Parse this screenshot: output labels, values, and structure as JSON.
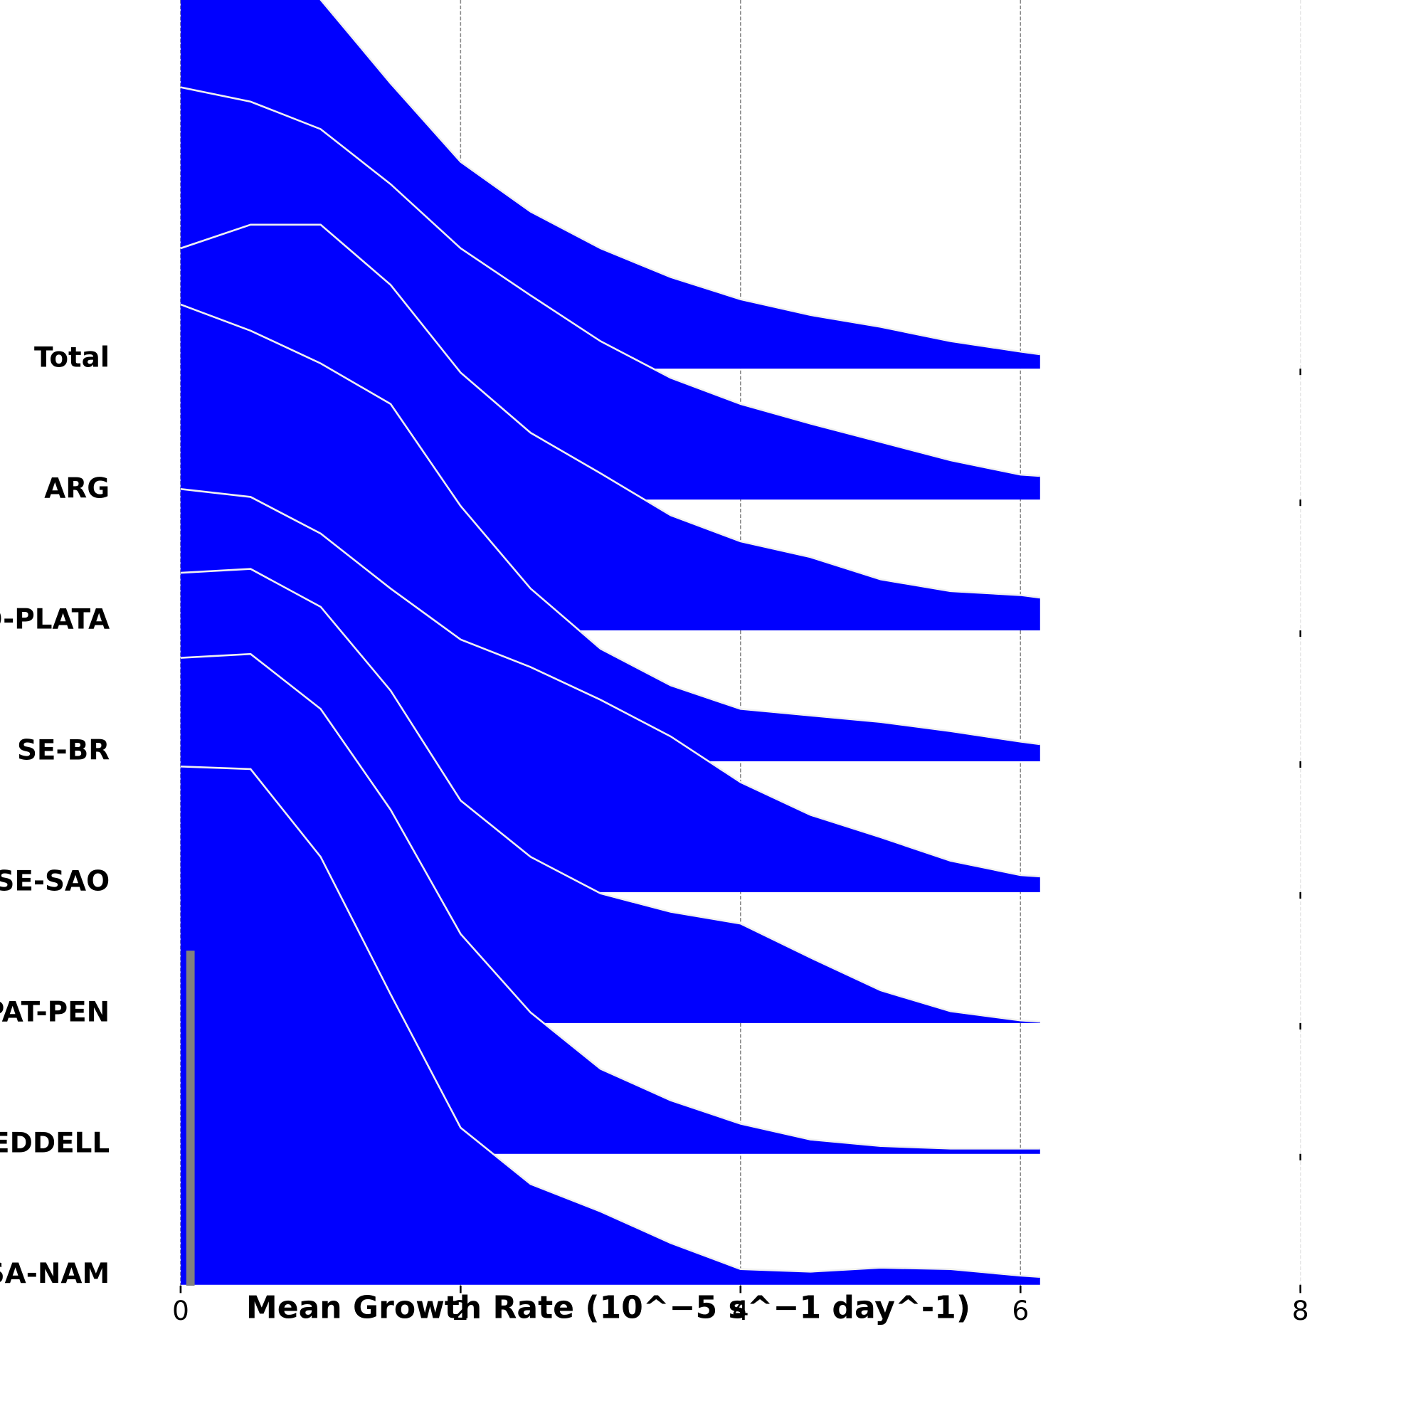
{
  "chart_data": {
    "type": "ridgeline",
    "xlabel": "Mean Growth Rate (10^−5 s^−1 day^-1)",
    "xlim": [
      0,
      8
    ],
    "xticks": [
      0,
      2,
      4,
      6,
      8
    ],
    "grid": true,
    "x": [
      0,
      0.5,
      1,
      1.5,
      2,
      2.5,
      3,
      3.5,
      4,
      4.5,
      5,
      5.5,
      6,
      6.14
    ],
    "series": [
      {
        "name": "Total",
        "color": "#0000ff",
        "values": [
          3.87,
          3.38,
          2.82,
          2.18,
          1.58,
          1.2,
          0.92,
          0.7,
          0.53,
          0.41,
          0.32,
          0.21,
          0.13,
          0.11
        ]
      },
      {
        "name": "ARG",
        "color": "#0000ff",
        "values": [
          3.15,
          3.04,
          2.83,
          2.41,
          1.92,
          1.56,
          1.21,
          0.93,
          0.73,
          0.58,
          0.44,
          0.3,
          0.19,
          0.18
        ]
      },
      {
        "name": "RIO-PLATA",
        "color": "#0000ff",
        "values": [
          2.92,
          3.1,
          3.1,
          2.64,
          1.97,
          1.51,
          1.2,
          0.88,
          0.68,
          0.56,
          0.39,
          0.3,
          0.27,
          0.25
        ]
      },
      {
        "name": "SE-BR",
        "color": "#0000ff",
        "values": [
          3.49,
          3.29,
          3.04,
          2.73,
          1.95,
          1.32,
          0.86,
          0.58,
          0.4,
          0.35,
          0.3,
          0.23,
          0.15,
          0.13
        ]
      },
      {
        "name": "SE-SAO",
        "color": "#0000ff",
        "values": [
          3.08,
          3.02,
          2.74,
          2.32,
          1.93,
          1.72,
          1.47,
          1.19,
          0.84,
          0.59,
          0.42,
          0.24,
          0.13,
          0.12
        ]
      },
      {
        "name": "PAT-PEN",
        "color": "#0000ff",
        "values": [
          3.44,
          3.47,
          3.18,
          2.54,
          1.7,
          1.27,
          0.99,
          0.85,
          0.76,
          0.5,
          0.25,
          0.09,
          0.02,
          0.01
        ]
      },
      {
        "name": "WEDDELL",
        "color": "#0000ff",
        "values": [
          3.79,
          3.82,
          3.4,
          2.63,
          1.68,
          1.08,
          0.65,
          0.41,
          0.23,
          0.11,
          0.06,
          0.04,
          0.04,
          0.04
        ]
      },
      {
        "name": "SSA-NAM",
        "color": "#0000ff",
        "values": [
          3.96,
          3.94,
          3.27,
          2.22,
          1.2,
          0.77,
          0.56,
          0.32,
          0.12,
          0.1,
          0.13,
          0.12,
          0.07,
          0.06
        ]
      }
    ],
    "bars": {
      "bins": [
        0.04,
        0.1
      ],
      "counts": [
        2.56
      ],
      "color": "#808080"
    }
  }
}
